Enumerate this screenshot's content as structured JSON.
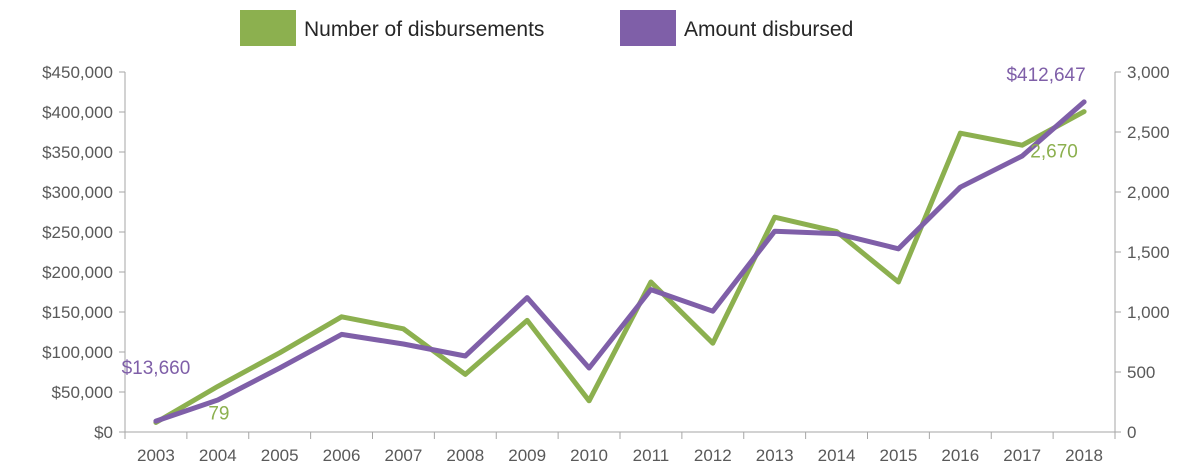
{
  "chart_data": {
    "type": "line",
    "title": "",
    "xlabel": "",
    "ylabel": "",
    "y2label": "",
    "categories": [
      "2003",
      "2004",
      "2005",
      "2006",
      "2007",
      "2008",
      "2009",
      "2010",
      "2011",
      "2012",
      "2013",
      "2014",
      "2015",
      "2016",
      "2017",
      "2018"
    ],
    "ylim": [
      0,
      450000
    ],
    "y2lim": [
      0,
      3000
    ],
    "y_ticks": [
      {
        "value": 0,
        "label": "$0"
      },
      {
        "value": 50000,
        "label": "$50,000"
      },
      {
        "value": 100000,
        "label": "$100,000"
      },
      {
        "value": 150000,
        "label": "$150,000"
      },
      {
        "value": 200000,
        "label": "$200,000"
      },
      {
        "value": 250000,
        "label": "$250,000"
      },
      {
        "value": 300000,
        "label": "$300,000"
      },
      {
        "value": 350000,
        "label": "$350,000"
      },
      {
        "value": 400000,
        "label": "$400,000"
      },
      {
        "value": 450000,
        "label": "$450,000"
      }
    ],
    "y2_ticks": [
      {
        "value": 0,
        "label": "0"
      },
      {
        "value": 500,
        "label": "500"
      },
      {
        "value": 1000,
        "label": "1,000"
      },
      {
        "value": 1500,
        "label": "1,500"
      },
      {
        "value": 2000,
        "label": "2,000"
      },
      {
        "value": 2500,
        "label": "2,500"
      },
      {
        "value": 3000,
        "label": "3,000"
      }
    ],
    "grid": false,
    "legend_position": "top-center",
    "series": [
      {
        "name": "Number of disbursements",
        "axis": "right",
        "color": "#8cb04f",
        "values": [
          79,
          380,
          660,
          960,
          860,
          480,
          930,
          260,
          1250,
          740,
          1790,
          1670,
          1250,
          2490,
          2390,
          2670
        ]
      },
      {
        "name": "Amount disbursed",
        "axis": "left",
        "color": "#7f5fa8",
        "values": [
          13660,
          40000,
          80000,
          122000,
          110000,
          95000,
          168000,
          80000,
          178000,
          151000,
          251000,
          248000,
          229000,
          306000,
          345000,
          412647
        ]
      }
    ],
    "annotations": [
      {
        "series": 1,
        "index": 0,
        "text": "$13,660"
      },
      {
        "series": 0,
        "index": 0,
        "text": "79"
      },
      {
        "series": 1,
        "index": 15,
        "text": "$412,647"
      },
      {
        "series": 0,
        "index": 15,
        "text": "2,670"
      }
    ]
  }
}
